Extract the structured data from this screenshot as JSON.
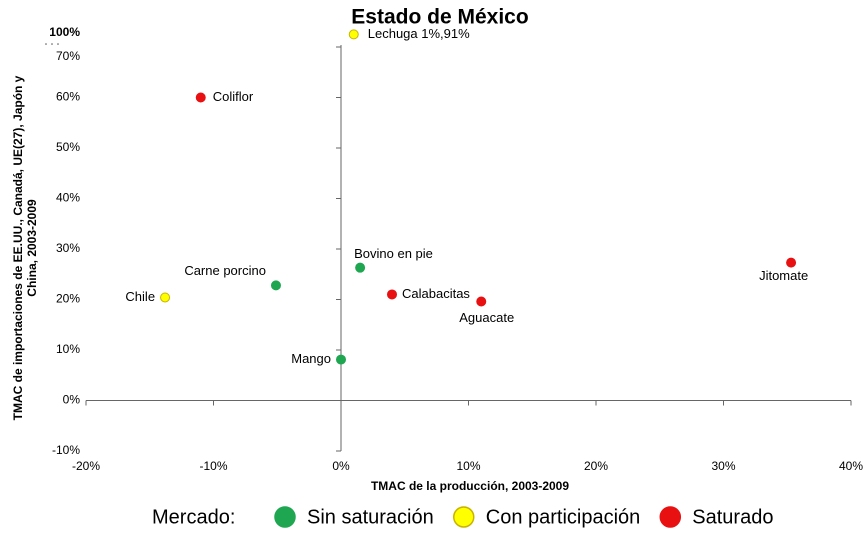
{
  "chart_data": {
    "type": "scatter",
    "title": "Estado de México",
    "x_label": "TMAC de la producción, 2003-2009",
    "y_label": [
      "TMAC de importaciones de EE.UU., Canadá, UE(27), Japón y",
      "China, 2003-2009"
    ],
    "legend_title": "Mercado:",
    "legend_position": "bottom",
    "y_axis_break": true,
    "xlim": [
      -20,
      40
    ],
    "xticks": [
      {
        "value": -20,
        "label": "-20%"
      },
      {
        "value": -10,
        "label": "-10%"
      },
      {
        "value": 0,
        "label": "0%"
      },
      {
        "value": 10,
        "label": "10%"
      },
      {
        "value": 20,
        "label": "20%"
      },
      {
        "value": 30,
        "label": "30%"
      },
      {
        "value": 40,
        "label": "40%"
      }
    ],
    "ylim": [
      -10,
      100
    ],
    "yticks": [
      {
        "value": -10,
        "label": "-10%"
      },
      {
        "value": 0,
        "label": "0%"
      },
      {
        "value": 10,
        "label": "10%"
      },
      {
        "value": 20,
        "label": "20%"
      },
      {
        "value": 30,
        "label": "30%"
      },
      {
        "value": 40,
        "label": "40%"
      },
      {
        "value": 50,
        "label": "50%"
      },
      {
        "value": 60,
        "label": "60%"
      },
      {
        "value": 70,
        "label": "70%"
      },
      {
        "value": 100,
        "label": "100%"
      }
    ],
    "series": [
      {
        "name": "Sin saturación",
        "color": "#1ea650",
        "x": [
          -5.1,
          1.5,
          0
        ],
        "values": [
          22.8,
          26.3,
          8.1
        ],
        "labels": [
          "Carne porcino",
          "Bovino en pie",
          "Mango"
        ]
      },
      {
        "name": "Con participación",
        "color": "#ffff00",
        "x": [
          1,
          -13.8
        ],
        "values": [
          91,
          20.4
        ],
        "labels": [
          "Lechuga 1%,91%",
          "Chile"
        ]
      },
      {
        "name": "Saturado",
        "color": "#e81010",
        "x": [
          -11,
          4,
          11,
          35.3
        ],
        "values": [
          60,
          21,
          19.6,
          27.3
        ],
        "labels": [
          "Coliflor",
          "Calabacitas",
          "Aguacate",
          "Jitomate"
        ]
      }
    ]
  }
}
